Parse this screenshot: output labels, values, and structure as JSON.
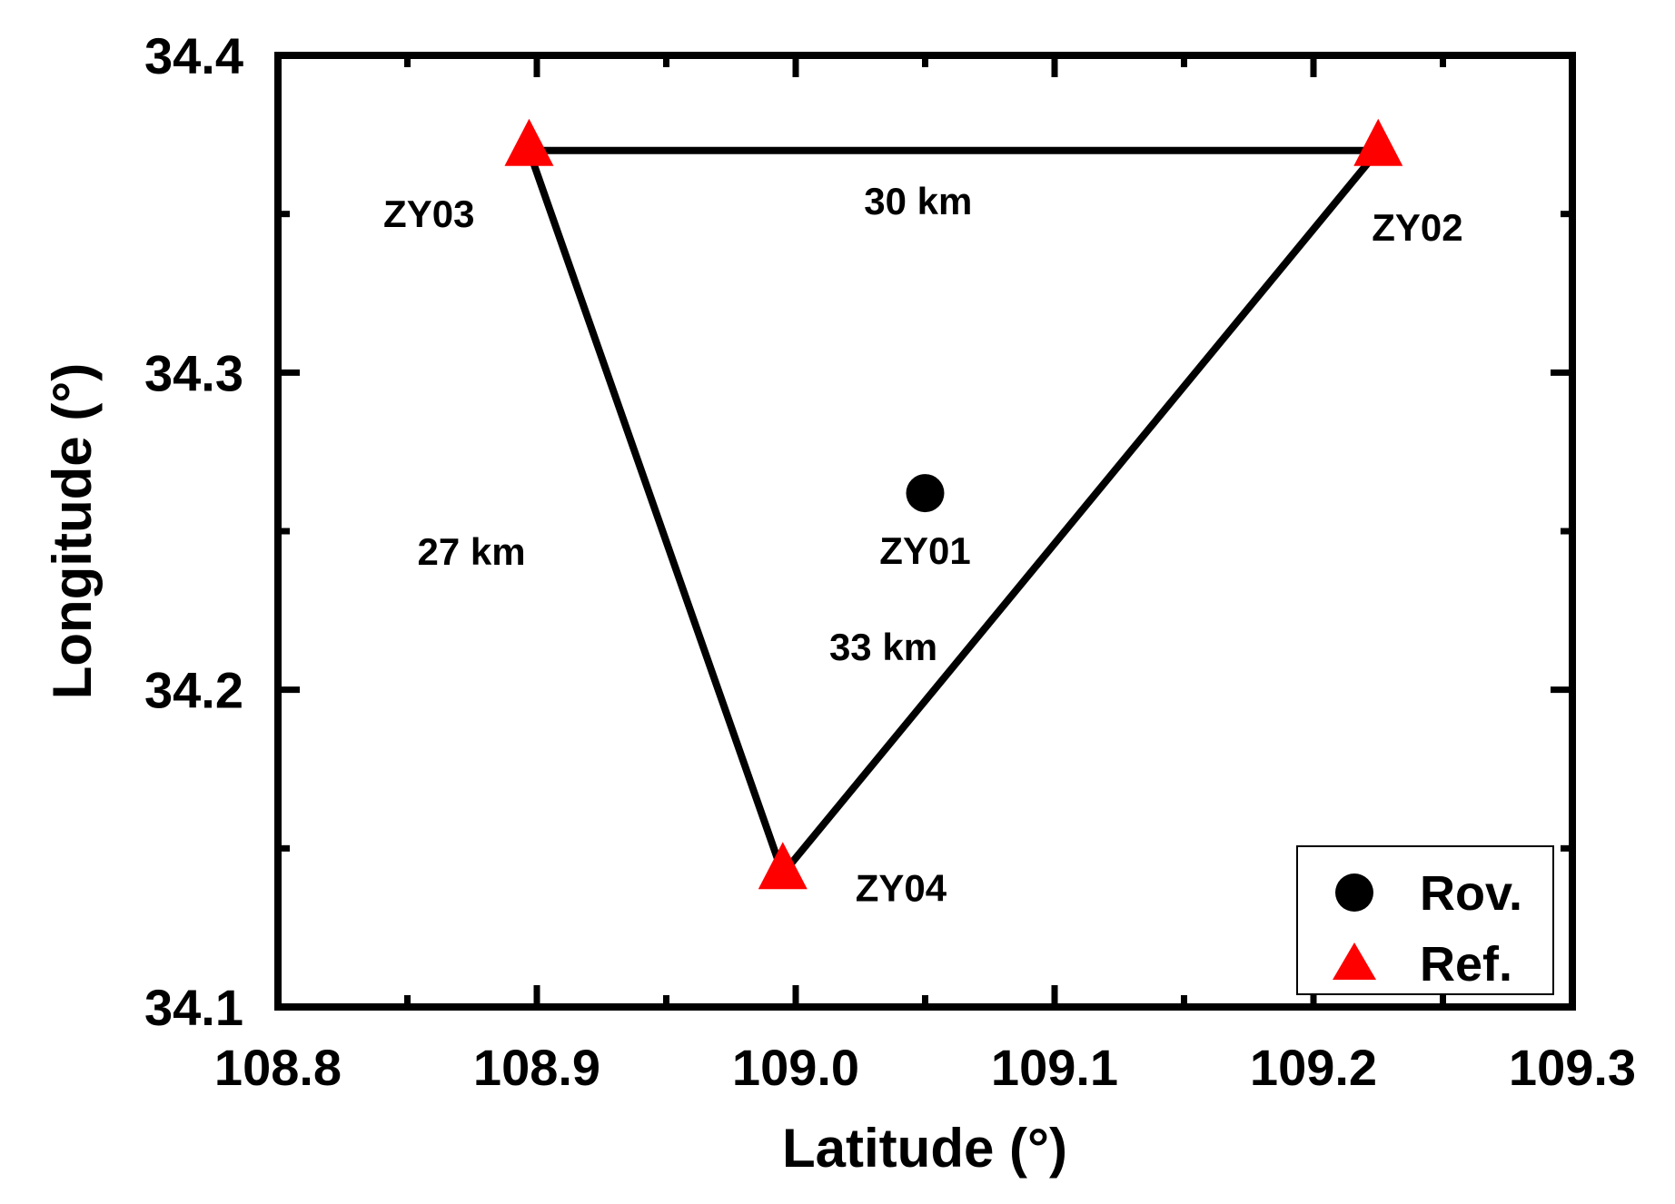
{
  "chart_data": {
    "type": "scatter",
    "xlabel": "Latitude (°)",
    "ylabel": "Longitude (°)",
    "xlim": [
      108.8,
      109.3
    ],
    "ylim": [
      34.1,
      34.4
    ],
    "x_ticks": [
      "108.8",
      "108.9",
      "109.0",
      "109.1",
      "109.2",
      "109.3"
    ],
    "y_ticks": [
      "34.1",
      "34.2",
      "34.3",
      "34.4"
    ],
    "grid": false,
    "legend_position": "bottom-right",
    "series": [
      {
        "name": "Rov.",
        "marker": "circle",
        "color": "#000000",
        "points": [
          {
            "label": "ZY01",
            "x": 109.05,
            "y": 34.262
          }
        ]
      },
      {
        "name": "Ref.",
        "marker": "triangle",
        "color": "#ff0000",
        "points": [
          {
            "label": "ZY02",
            "x": 109.225,
            "y": 34.37
          },
          {
            "label": "ZY03",
            "x": 108.897,
            "y": 34.37
          },
          {
            "label": "ZY04",
            "x": 108.995,
            "y": 34.142
          }
        ]
      }
    ],
    "baselines": [
      {
        "label": "30 km",
        "from": "ZY03",
        "to": "ZY02"
      },
      {
        "label": "33 km",
        "from": "ZY02",
        "to": "ZY04"
      },
      {
        "label": "27 km",
        "from": "ZY04",
        "to": "ZY03"
      }
    ]
  }
}
